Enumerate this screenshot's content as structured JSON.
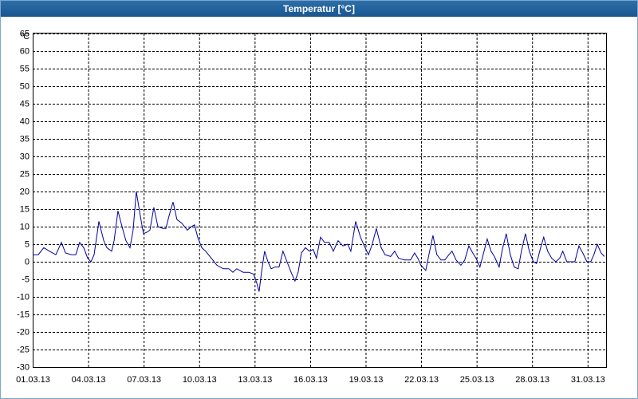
{
  "window_title": "Temperatur [°C]",
  "chart_data": {
    "type": "line",
    "y_unit_label": "°C",
    "color": "#0000a0",
    "grid": true,
    "xlim": [
      0,
      31
    ],
    "ylim": [
      -30,
      70
    ],
    "yticks": [
      -30,
      -25,
      -20,
      -15,
      -10,
      -5,
      0,
      5,
      10,
      15,
      20,
      25,
      30,
      35,
      40,
      45,
      50,
      55,
      60,
      65
    ],
    "xticks": [
      {
        "value": 0,
        "label": "01.03.13"
      },
      {
        "value": 3,
        "label": "04.03.13"
      },
      {
        "value": 6,
        "label": "07.03.13"
      },
      {
        "value": 9,
        "label": "10.03.13"
      },
      {
        "value": 12,
        "label": "13.03.13"
      },
      {
        "value": 15,
        "label": "16.03.13"
      },
      {
        "value": 18,
        "label": "19.03.13"
      },
      {
        "value": 21,
        "label": "22.03.13"
      },
      {
        "value": 24,
        "label": "25.03.13"
      },
      {
        "value": 27,
        "label": "28.03.13"
      },
      {
        "value": 30,
        "label": "31.03.13"
      }
    ],
    "x": [
      0,
      0.3,
      0.6,
      0.91,
      1.25,
      1.55,
      1.77,
      2.11,
      2.33,
      2.54,
      2.76,
      2.97,
      3.15,
      3.32,
      3.58,
      3.84,
      4.01,
      4.27,
      4.4,
      4.61,
      4.83,
      5.04,
      5.26,
      5.43,
      5.6,
      5.82,
      5.99,
      6.21,
      6.34,
      6.55,
      6.77,
      7.03,
      7.2,
      7.37,
      7.59,
      7.8,
      8.06,
      8.36,
      8.58,
      8.75,
      8.92,
      9.14,
      9.35,
      9.66,
      9.96,
      10.3,
      10.6,
      10.82,
      11.03,
      11.38,
      11.68,
      11.94,
      12.11,
      12.24,
      12.37,
      12.54,
      12.72,
      12.89,
      13.1,
      13.32,
      13.53,
      13.75,
      13.97,
      14.18,
      14.35,
      14.53,
      14.74,
      14.96,
      15.17,
      15.34,
      15.56,
      15.78,
      16.03,
      16.25,
      16.51,
      16.77,
      17.03,
      17.2,
      17.46,
      17.72,
      17.97,
      18.15,
      18.36,
      18.58,
      18.84,
      19.05,
      19.35,
      19.57,
      19.78,
      20.09,
      20.43,
      20.65,
      20.82,
      20.99,
      21.25,
      21.42,
      21.64,
      21.85,
      22.07,
      22.28,
      22.5,
      22.67,
      22.89,
      23.15,
      23.36,
      23.58,
      23.79,
      23.97,
      24.18,
      24.35,
      24.57,
      24.78,
      24.96,
      25.22,
      25.39,
      25.6,
      25.82,
      26.03,
      26.25,
      26.42,
      26.64,
      26.85,
      27.07,
      27.24,
      27.46,
      27.63,
      27.84,
      28.06,
      28.28,
      28.49,
      28.66,
      28.88,
      29.09,
      29.31,
      29.53,
      29.74,
      29.96,
      30.17,
      30.34,
      30.52,
      30.73,
      30.91
    ],
    "values": [
      2,
      2,
      4,
      3,
      2,
      5.5,
      2.5,
      2,
      2,
      5.5,
      4,
      1,
      0,
      2,
      11.5,
      6,
      4,
      3,
      6,
      14.5,
      10,
      6,
      4,
      9,
      20,
      13,
      8,
      8.5,
      9,
      15.5,
      10,
      9.5,
      9.5,
      13,
      17,
      12,
      11,
      9,
      10,
      10.5,
      7,
      4,
      3,
      1,
      -1,
      -2,
      -2,
      -3,
      -2,
      -3,
      -3,
      -3.5,
      -6,
      -8.5,
      -3,
      3,
      0,
      -2,
      -1.5,
      -1.5,
      3,
      0,
      -3,
      -5.5,
      -3,
      2.5,
      4,
      3,
      3.5,
      1,
      7,
      5.5,
      5.5,
      3,
      6,
      4.5,
      5,
      3,
      11.5,
      7,
      4,
      2,
      5,
      9.5,
      4,
      2,
      1.5,
      3,
      1,
      0.5,
      0.5,
      2.5,
      1,
      -1,
      -2.5,
      2,
      7.5,
      2,
      0.5,
      0.5,
      2,
      3,
      0.5,
      -1,
      0.5,
      4.5,
      2.5,
      1,
      -1.5,
      2,
      6.5,
      3,
      1.5,
      -1.5,
      3.5,
      8,
      2,
      -1.5,
      -2,
      3,
      8,
      3,
      0,
      -0.5,
      4,
      7,
      3,
      1,
      0,
      1,
      3,
      0,
      0,
      0,
      4.5,
      2.5,
      0,
      0,
      2,
      5,
      2.5,
      1.5
    ]
  }
}
